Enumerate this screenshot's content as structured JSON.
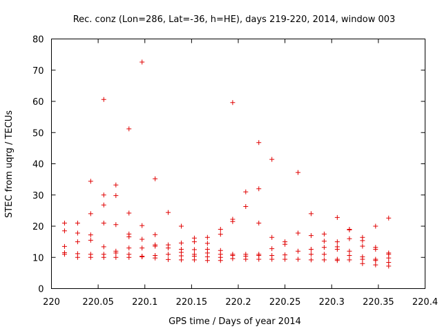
{
  "chart_data": {
    "type": "scatter",
    "title": "Rec. conz (Lon=286, Lat=-36, h=HE), days 219-220, 2014, window 003",
    "xlabel": "GPS time / Days of year 2014",
    "ylabel": "STEC from uqrg / TECUs",
    "xlim": [
      220,
      220.4
    ],
    "ylim": [
      0,
      80
    ],
    "xticks": [
      220,
      220.05,
      220.1,
      220.15,
      220.2,
      220.25,
      220.3,
      220.35,
      220.4
    ],
    "xtick_labels": [
      "220",
      "220.05",
      "220.1",
      "220.15",
      "220.2",
      "220.25",
      "220.3",
      "220.35",
      "220.4"
    ],
    "yticks": [
      0,
      10,
      20,
      30,
      40,
      50,
      60,
      70,
      80
    ],
    "ytick_labels": [
      "0",
      "10",
      "20",
      "30",
      "40",
      "50",
      "60",
      "70",
      "80"
    ],
    "marker": "+",
    "color": "#e00000",
    "series": [
      {
        "name": "STEC",
        "points": [
          [
            220.014,
            21
          ],
          [
            220.014,
            18.5
          ],
          [
            220.014,
            13.5
          ],
          [
            220.014,
            11.5
          ],
          [
            220.014,
            11
          ],
          [
            220.028,
            21
          ],
          [
            220.028,
            17.8
          ],
          [
            220.028,
            15
          ],
          [
            220.028,
            11.2
          ],
          [
            220.028,
            10
          ],
          [
            220.042,
            34.4
          ],
          [
            220.042,
            24
          ],
          [
            220.042,
            17.2
          ],
          [
            220.042,
            15.5
          ],
          [
            220.042,
            11
          ],
          [
            220.042,
            10
          ],
          [
            220.056,
            60.6
          ],
          [
            220.056,
            30
          ],
          [
            220.056,
            26.8
          ],
          [
            220.056,
            21
          ],
          [
            220.056,
            13.4
          ],
          [
            220.056,
            11
          ],
          [
            220.056,
            10
          ],
          [
            220.069,
            33.2
          ],
          [
            220.069,
            29.8
          ],
          [
            220.069,
            20.5
          ],
          [
            220.069,
            12
          ],
          [
            220.069,
            11.4
          ],
          [
            220.069,
            10
          ],
          [
            220.083,
            51.2
          ],
          [
            220.083,
            24.2
          ],
          [
            220.083,
            17.5
          ],
          [
            220.083,
            16.6
          ],
          [
            220.083,
            13
          ],
          [
            220.083,
            11
          ],
          [
            220.083,
            10
          ],
          [
            220.097,
            72.6
          ],
          [
            220.097,
            20.2
          ],
          [
            220.097,
            15.8
          ],
          [
            220.097,
            13
          ],
          [
            220.097,
            10.4
          ],
          [
            220.097,
            10.2
          ],
          [
            220.111,
            35.2
          ],
          [
            220.111,
            17.3
          ],
          [
            220.111,
            14
          ],
          [
            220.111,
            13.6
          ],
          [
            220.111,
            10.6
          ],
          [
            220.111,
            9.8
          ],
          [
            220.125,
            24.4
          ],
          [
            220.125,
            14
          ],
          [
            220.125,
            13
          ],
          [
            220.125,
            11
          ],
          [
            220.125,
            9.3
          ],
          [
            220.139,
            20
          ],
          [
            220.139,
            14.6
          ],
          [
            220.139,
            12.6
          ],
          [
            220.139,
            11.6
          ],
          [
            220.139,
            10.5
          ],
          [
            220.139,
            9.2
          ],
          [
            220.153,
            16.2
          ],
          [
            220.153,
            15
          ],
          [
            220.153,
            12.5
          ],
          [
            220.153,
            11
          ],
          [
            220.153,
            10.4
          ],
          [
            220.153,
            9.2
          ],
          [
            220.167,
            16.4
          ],
          [
            220.167,
            14.5
          ],
          [
            220.167,
            12.6
          ],
          [
            220.167,
            11.4
          ],
          [
            220.167,
            10.2
          ],
          [
            220.167,
            9
          ],
          [
            220.181,
            19
          ],
          [
            220.181,
            17.4
          ],
          [
            220.181,
            12.2
          ],
          [
            220.181,
            11
          ],
          [
            220.181,
            10
          ],
          [
            220.181,
            9
          ],
          [
            220.194,
            59.6
          ],
          [
            220.194,
            22.2
          ],
          [
            220.194,
            21.5
          ],
          [
            220.194,
            11
          ],
          [
            220.194,
            10.6
          ],
          [
            220.194,
            9.6
          ],
          [
            220.208,
            31
          ],
          [
            220.208,
            26.3
          ],
          [
            220.208,
            11
          ],
          [
            220.208,
            10.4
          ],
          [
            220.208,
            9.4
          ],
          [
            220.222,
            46.8
          ],
          [
            220.222,
            32
          ],
          [
            220.222,
            21
          ],
          [
            220.222,
            11
          ],
          [
            220.222,
            10.6
          ],
          [
            220.222,
            9.4
          ],
          [
            220.236,
            41.4
          ],
          [
            220.236,
            16.4
          ],
          [
            220.236,
            12.8
          ],
          [
            220.236,
            10.6
          ],
          [
            220.236,
            9.4
          ],
          [
            220.25,
            15
          ],
          [
            220.25,
            14.2
          ],
          [
            220.25,
            10.8
          ],
          [
            220.25,
            9.4
          ],
          [
            220.264,
            37.2
          ],
          [
            220.264,
            17.8
          ],
          [
            220.264,
            12
          ],
          [
            220.264,
            9.4
          ],
          [
            220.278,
            24
          ],
          [
            220.278,
            17
          ],
          [
            220.278,
            12.6
          ],
          [
            220.278,
            11
          ],
          [
            220.278,
            9.2
          ],
          [
            220.292,
            17.5
          ],
          [
            220.292,
            15.2
          ],
          [
            220.292,
            13.2
          ],
          [
            220.292,
            11
          ],
          [
            220.292,
            9.2
          ],
          [
            220.306,
            22.8
          ],
          [
            220.306,
            15
          ],
          [
            220.306,
            13.4
          ],
          [
            220.306,
            12.6
          ],
          [
            220.306,
            9.4
          ],
          [
            220.306,
            9
          ],
          [
            220.319,
            19
          ],
          [
            220.319,
            18.8
          ],
          [
            220.319,
            16
          ],
          [
            220.319,
            12
          ],
          [
            220.319,
            10.6
          ],
          [
            220.319,
            9.2
          ],
          [
            220.333,
            16.4
          ],
          [
            220.333,
            15.4
          ],
          [
            220.333,
            13.6
          ],
          [
            220.333,
            10.2
          ],
          [
            220.333,
            9.4
          ],
          [
            220.333,
            8
          ],
          [
            220.347,
            20
          ],
          [
            220.347,
            13.2
          ],
          [
            220.347,
            12.6
          ],
          [
            220.347,
            9.4
          ],
          [
            220.347,
            9
          ],
          [
            220.347,
            7.6
          ],
          [
            220.361,
            22.6
          ],
          [
            220.361,
            11.4
          ],
          [
            220.361,
            11
          ],
          [
            220.361,
            9.8
          ],
          [
            220.361,
            8.4
          ],
          [
            220.361,
            7.2
          ]
        ]
      }
    ]
  }
}
